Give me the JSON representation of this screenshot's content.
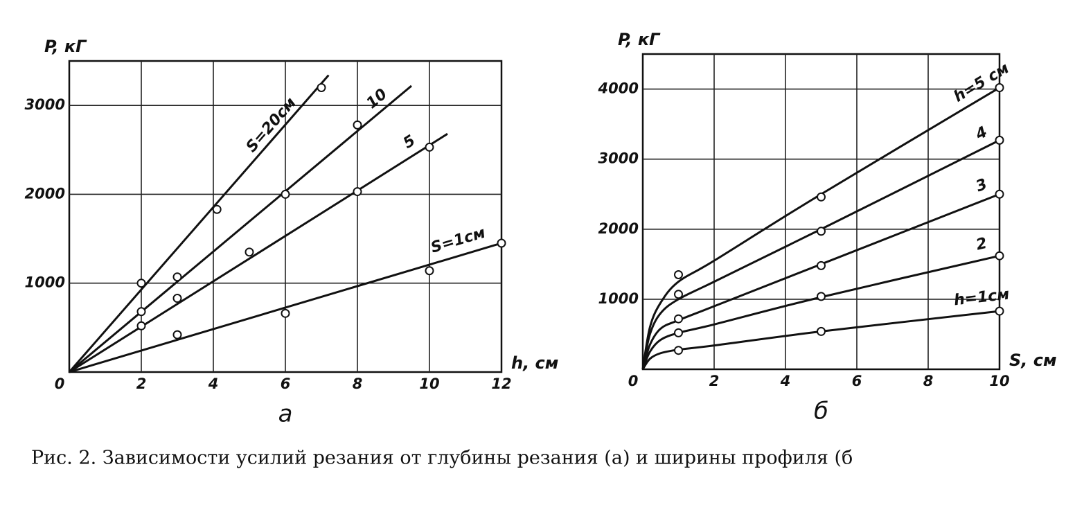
{
  "chart_data": [
    {
      "type": "line",
      "panel_label": "а",
      "ylabel": "P, кГ",
      "xlabel": "h, см",
      "xlim": [
        0,
        12
      ],
      "ylim": [
        0,
        3500
      ],
      "xticks": [
        0,
        2,
        4,
        6,
        8,
        10,
        12
      ],
      "yticks": [
        1000,
        2000,
        3000
      ],
      "grid": true,
      "series": [
        {
          "name": "S=20см",
          "color": "#111111",
          "x": [
            2,
            4.1,
            7
          ],
          "values": [
            1000,
            1830,
            3200
          ],
          "line_x": [
            0,
            7.2
          ],
          "line_y": [
            0,
            3340
          ]
        },
        {
          "name": "10",
          "color": "#111111",
          "x": [
            2,
            3,
            6,
            8
          ],
          "values": [
            680,
            1070,
            2000,
            2780
          ],
          "line_x": [
            0,
            9.5
          ],
          "line_y": [
            0,
            3220
          ]
        },
        {
          "name": "5",
          "color": "#111111",
          "x": [
            2,
            3,
            5,
            8,
            10
          ],
          "values": [
            520,
            830,
            1350,
            2030,
            2530
          ],
          "line_x": [
            0,
            10.5
          ],
          "line_y": [
            0,
            2680
          ]
        },
        {
          "name": "S=1см",
          "color": "#111111",
          "x": [
            3,
            6,
            10,
            12
          ],
          "values": [
            420,
            660,
            1140,
            1450
          ],
          "line_x": [
            0,
            12
          ],
          "line_y": [
            0,
            1450
          ]
        }
      ]
    },
    {
      "type": "curve",
      "panel_label": "б",
      "ylabel": "P, кГ",
      "xlabel": "S, см",
      "xlim": [
        0,
        10
      ],
      "ylim": [
        0,
        4500
      ],
      "xticks": [
        0,
        2,
        4,
        6,
        8,
        10
      ],
      "yticks": [
        1000,
        2000,
        3000,
        4000
      ],
      "grid": true,
      "series": [
        {
          "name": "h=5 см",
          "color": "#111111",
          "x": [
            1,
            5,
            10
          ],
          "values": [
            1350,
            2460,
            4020
          ],
          "line_x": [
            0,
            0.2,
            0.5,
            1,
            2,
            5,
            10
          ],
          "line_y": [
            0,
            600,
            950,
            1250,
            1550,
            2500,
            4020
          ]
        },
        {
          "name": "4",
          "color": "#111111",
          "x": [
            1,
            5,
            10
          ],
          "values": [
            1070,
            1970,
            3270
          ],
          "line_x": [
            0,
            0.2,
            0.5,
            1,
            2,
            5,
            10
          ],
          "line_y": [
            0,
            500,
            800,
            1000,
            1250,
            2000,
            3270
          ]
        },
        {
          "name": "3",
          "color": "#111111",
          "x": [
            1,
            5,
            10
          ],
          "values": [
            720,
            1480,
            2500
          ],
          "line_x": [
            0,
            0.2,
            0.5,
            1,
            2,
            5,
            10
          ],
          "line_y": [
            0,
            350,
            580,
            700,
            900,
            1500,
            2500
          ]
        },
        {
          "name": "2",
          "color": "#111111",
          "x": [
            1,
            5,
            10
          ],
          "values": [
            520,
            1040,
            1620
          ],
          "line_x": [
            0,
            0.2,
            0.5,
            1,
            2,
            5,
            10
          ],
          "line_y": [
            0,
            250,
            420,
            520,
            640,
            1030,
            1620
          ]
        },
        {
          "name": "h=1см",
          "color": "#111111",
          "x": [
            1,
            5,
            10
          ],
          "values": [
            270,
            540,
            830
          ],
          "line_x": [
            0,
            0.2,
            0.5,
            1,
            2,
            5,
            10
          ],
          "line_y": [
            0,
            150,
            230,
            280,
            340,
            540,
            830
          ]
        }
      ]
    }
  ],
  "caption": "Рис. 2. Зависимости усилий резания от глубины резания (а) и ширины профиля (б"
}
